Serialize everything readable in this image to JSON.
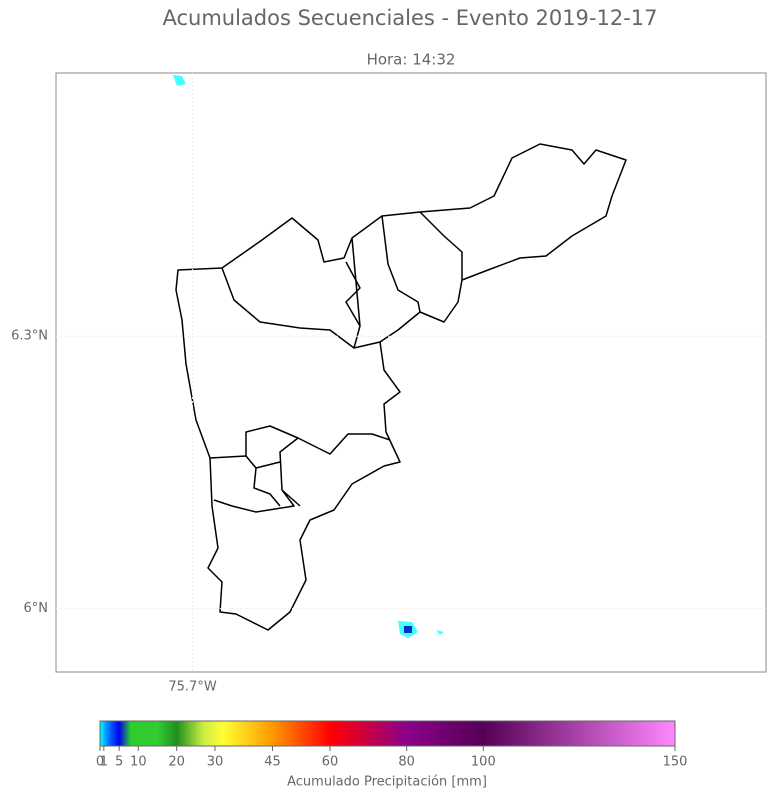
{
  "title": "Acumulados Secuenciales - Evento 2019-12-17",
  "subtitle": "Hora: 14:32",
  "map": {
    "xlim": [
      -75.85,
      -75.07
    ],
    "ylim": [
      5.93,
      6.59
    ],
    "xticks": [
      {
        "value": -75.7,
        "label": "75.7°W"
      }
    ],
    "yticks": [
      {
        "value": 6,
        "label": "6°N"
      },
      {
        "value": 6.3,
        "label": "6.3°N"
      }
    ]
  },
  "colorbar": {
    "label": "Acumulado Precipitación [mm]",
    "lim": [
      0,
      150
    ],
    "ticks": [
      0,
      1,
      5,
      10,
      20,
      30,
      45,
      60,
      80,
      100,
      150
    ],
    "gradient": [
      {
        "value": 0,
        "color": "#00ffff"
      },
      {
        "value": 2,
        "color": "#0080ff"
      },
      {
        "value": 5,
        "color": "#0000ee"
      },
      {
        "value": 8,
        "color": "#2ecc2e"
      },
      {
        "value": 15,
        "color": "#33cc33"
      },
      {
        "value": 20,
        "color": "#1f8f1f"
      },
      {
        "value": 27,
        "color": "#ccee44"
      },
      {
        "value": 32,
        "color": "#ffff33"
      },
      {
        "value": 45,
        "color": "#ff9900"
      },
      {
        "value": 60,
        "color": "#ff0000"
      },
      {
        "value": 80,
        "color": "#8b008b"
      },
      {
        "value": 100,
        "color": "#550055"
      },
      {
        "value": 150,
        "color": "#ff88ff"
      }
    ]
  }
}
